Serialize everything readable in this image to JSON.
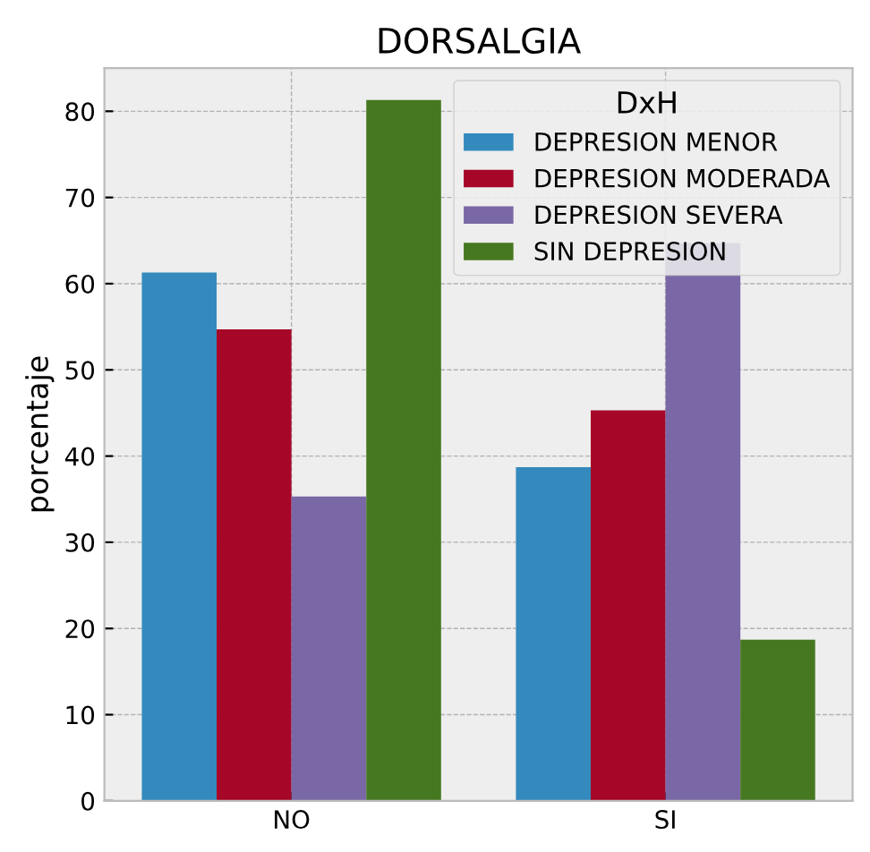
{
  "chart_data": {
    "type": "bar",
    "title": "DORSALGIA",
    "ylabel": "porcentaje",
    "legend_title": "DxH",
    "categories": [
      "NO",
      "SI"
    ],
    "series": [
      {
        "name": "DEPRESION MENOR",
        "color": "#348abd",
        "values": [
          61.3,
          38.7
        ]
      },
      {
        "name": "DEPRESION MODERADA",
        "color": "#a60628",
        "values": [
          54.7,
          45.3
        ]
      },
      {
        "name": "DEPRESION SEVERA",
        "color": "#7a68a6",
        "values": [
          35.3,
          64.7
        ]
      },
      {
        "name": "SIN DEPRESION",
        "color": "#467821",
        "values": [
          81.3,
          18.7
        ]
      }
    ],
    "ylim": [
      0,
      85
    ],
    "yticks": [
      0,
      10,
      20,
      30,
      40,
      50,
      60,
      70,
      80
    ],
    "grid": true,
    "legend": "top right"
  }
}
